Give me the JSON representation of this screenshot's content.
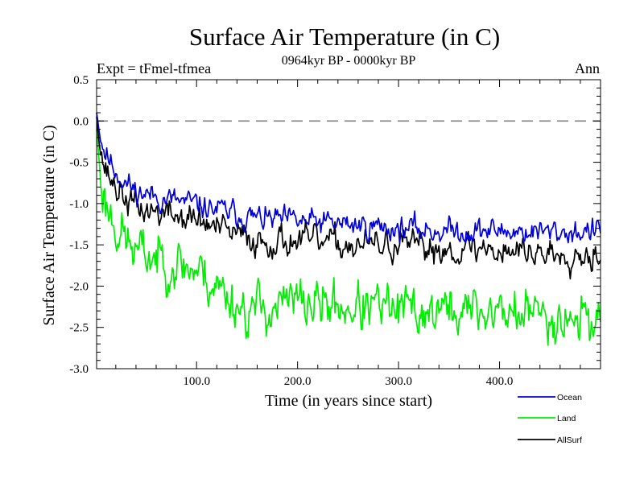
{
  "chart_data": {
    "type": "line",
    "title": "Surface Air Temperature (in C)",
    "subtitle": "0964kyr BP - 0000kyr BP",
    "expt_label": "Expt = tFmel-tfmea",
    "season_label": "Ann",
    "xlabel": "Time (in years since start)",
    "ylabel": "Surface Air Temperature (in C)",
    "xlim": [
      1,
      500
    ],
    "ylim": [
      -3.0,
      0.5
    ],
    "xticks": [
      100,
      200,
      300,
      400
    ],
    "xtick_labels": [
      "100.0",
      "200.0",
      "300.0",
      "400.0"
    ],
    "yticks": [
      0.5,
      0.0,
      -0.5,
      -1.0,
      -1.5,
      -2.0,
      -2.5,
      -3.0
    ],
    "ytick_labels": [
      "0.5",
      "0.0",
      "-0.5",
      "-1.0",
      "-1.5",
      "-2.0",
      "-2.5",
      "-3.0"
    ],
    "reference_line": {
      "y": 0.0,
      "style": "dashed",
      "color": "#808080"
    },
    "series": [
      {
        "name": "Ocean",
        "color": "#0000dd",
        "keypoints": [
          [
            1,
            0.1
          ],
          [
            5,
            -0.2
          ],
          [
            10,
            -0.4
          ],
          [
            20,
            -0.6
          ],
          [
            30,
            -0.75
          ],
          [
            40,
            -0.85
          ],
          [
            60,
            -0.92
          ],
          [
            80,
            -0.97
          ],
          [
            100,
            -1.02
          ],
          [
            130,
            -1.1
          ],
          [
            160,
            -1.18
          ],
          [
            200,
            -1.22
          ],
          [
            250,
            -1.25
          ],
          [
            300,
            -1.3
          ],
          [
            350,
            -1.33
          ],
          [
            400,
            -1.33
          ],
          [
            450,
            -1.35
          ],
          [
            500,
            -1.33
          ]
        ],
        "noise": 0.1,
        "seed": 11
      },
      {
        "name": "Land",
        "color": "#00ee00",
        "keypoints": [
          [
            1,
            -0.1
          ],
          [
            5,
            -0.7
          ],
          [
            10,
            -1.0
          ],
          [
            20,
            -1.25
          ],
          [
            30,
            -1.45
          ],
          [
            40,
            -1.6
          ],
          [
            60,
            -1.65
          ],
          [
            80,
            -1.72
          ],
          [
            100,
            -1.8
          ],
          [
            130,
            -2.1
          ],
          [
            150,
            -2.3
          ],
          [
            200,
            -2.2
          ],
          [
            250,
            -2.25
          ],
          [
            300,
            -2.3
          ],
          [
            350,
            -2.3
          ],
          [
            400,
            -2.3
          ],
          [
            450,
            -2.35
          ],
          [
            500,
            -2.4
          ]
        ],
        "noise": 0.2,
        "seed": 23
      },
      {
        "name": "AllSurf",
        "color": "#000000",
        "keypoints": [
          [
            1,
            0.05
          ],
          [
            5,
            -0.35
          ],
          [
            10,
            -0.6
          ],
          [
            20,
            -0.8
          ],
          [
            30,
            -0.95
          ],
          [
            40,
            -1.05
          ],
          [
            60,
            -1.1
          ],
          [
            80,
            -1.15
          ],
          [
            100,
            -1.2
          ],
          [
            130,
            -1.35
          ],
          [
            160,
            -1.45
          ],
          [
            200,
            -1.45
          ],
          [
            250,
            -1.5
          ],
          [
            300,
            -1.52
          ],
          [
            350,
            -1.55
          ],
          [
            400,
            -1.55
          ],
          [
            450,
            -1.6
          ],
          [
            500,
            -1.6
          ]
        ],
        "noise": 0.12,
        "seed": 37
      }
    ],
    "legend": [
      "Ocean",
      "Land",
      "AllSurf"
    ],
    "legend_position": "bottom-right"
  }
}
